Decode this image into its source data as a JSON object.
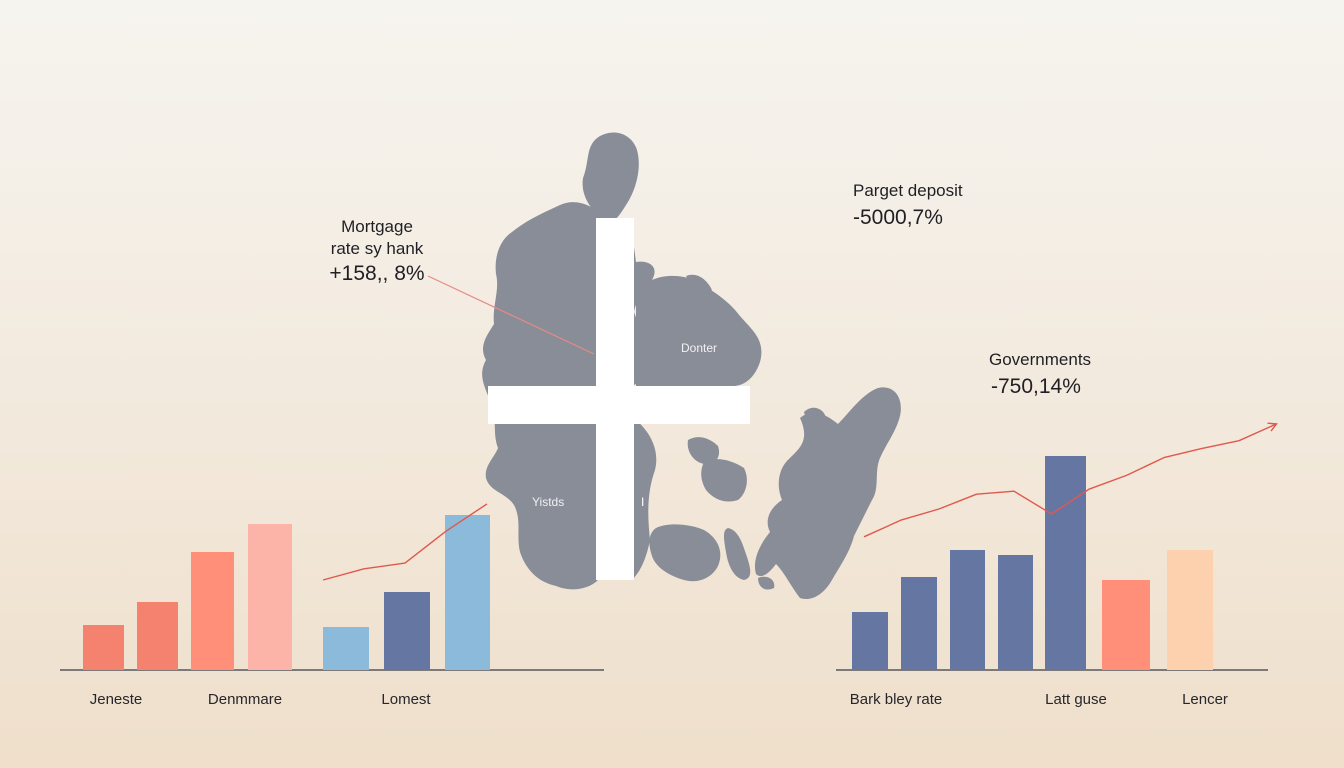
{
  "annotations": {
    "mortgage": {
      "label_line1": "Mortgage",
      "label_line2": "rate sy hank",
      "value": "+158,, 8%"
    },
    "parget": {
      "label": "Parget deposit",
      "value": "-5000,7%"
    },
    "governments": {
      "label": "Governments",
      "value": "-750,14%"
    }
  },
  "map": {
    "icon": "denmark-flag-map",
    "label_east": "Donter",
    "label_west": "Yistds",
    "label_mark": "I",
    "land_color": "#898d98",
    "cross_color": "#ffffff"
  },
  "colors": {
    "coral": "#f5826f",
    "salmon": "#ff8f78",
    "pink": "#fcb3a8",
    "light_blue": "#8cbadb",
    "slate_blue": "#6676a3",
    "peach": "#fdd0ae",
    "trend": "#e0584c",
    "axis": "#3a3a40"
  },
  "chart_data": [
    {
      "type": "bar",
      "categories": [
        "Jeneste",
        "Denmmare",
        "Lomest"
      ],
      "bars": [
        {
          "value": 45,
          "color": "#f5826f"
        },
        {
          "value": 68,
          "color": "#f5826f"
        },
        {
          "value": 118,
          "color": "#ff8f78"
        },
        {
          "value": 146,
          "color": "#fcb3a8"
        },
        {
          "value": 43,
          "color": "#8cbadb"
        },
        {
          "value": 78,
          "color": "#6676a3"
        },
        {
          "value": 155,
          "color": "#8cbadb"
        }
      ],
      "trend_line": [
        [
          0,
          0.34
        ],
        [
          1,
          0.46
        ],
        [
          2,
          0.52
        ],
        [
          3,
          0.86
        ],
        [
          4,
          1.15
        ]
      ]
    },
    {
      "type": "bar",
      "categories": [
        "Bark bley rate",
        "Latt guse",
        "Lencer"
      ],
      "bars": [
        {
          "value": 58,
          "color": "#6676a3"
        },
        {
          "value": 93,
          "color": "#6676a3"
        },
        {
          "value": 120,
          "color": "#6676a3"
        },
        {
          "value": 115,
          "color": "#6676a3"
        },
        {
          "value": 214,
          "color": "#6676a3"
        },
        {
          "value": 90,
          "color": "#ff8f78"
        },
        {
          "value": 120,
          "color": "#fdd0ae"
        }
      ],
      "trend_line": [
        [
          0,
          0.76
        ],
        [
          1,
          0.93
        ],
        [
          2,
          1.04
        ],
        [
          3,
          1.19
        ],
        [
          4,
          1.22
        ],
        [
          5,
          0.99
        ],
        [
          6,
          1.24
        ],
        [
          7,
          1.38
        ],
        [
          8,
          1.56
        ],
        [
          9,
          1.65
        ],
        [
          10,
          1.73
        ],
        [
          11,
          1.9
        ]
      ]
    }
  ]
}
